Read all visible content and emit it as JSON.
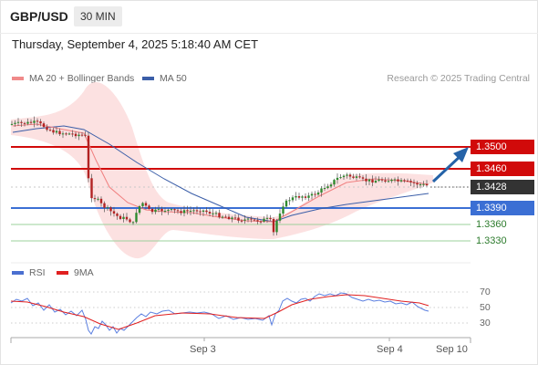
{
  "header": {
    "symbol": "GBP/USD",
    "timeframe": "30 MIN"
  },
  "datetime": "Thursday, September 4, 2025 5:18:40 AM CET",
  "legend": {
    "ma20_label": "MA 20 + Bollinger Bands",
    "ma50_label": "MA 50",
    "credit": "Research © 2025 Trading Central",
    "rsi_label": "RSI",
    "rsi_ma_label": "9MA"
  },
  "colors": {
    "resistance": "#d10a0a",
    "support": "#3b6fd4",
    "minor_support": "#8bc58b",
    "ma20": "#f08080",
    "ma50": "#3b5ea8",
    "forecast_arrow": "#2563a8",
    "current_price_tag": "#333333"
  },
  "levels": {
    "r2": "1.3500",
    "r1": "1.3460",
    "current": "1.3428",
    "s1": "1.3390",
    "s2": "1.3360",
    "s3": "1.3330"
  },
  "rsi_levels": [
    "70",
    "50",
    "30"
  ],
  "x_labels": [
    "Sep 3",
    "Sep 4",
    "Sep 10"
  ],
  "icons": {
    "forecast": "forecast-arrow-icon"
  }
}
